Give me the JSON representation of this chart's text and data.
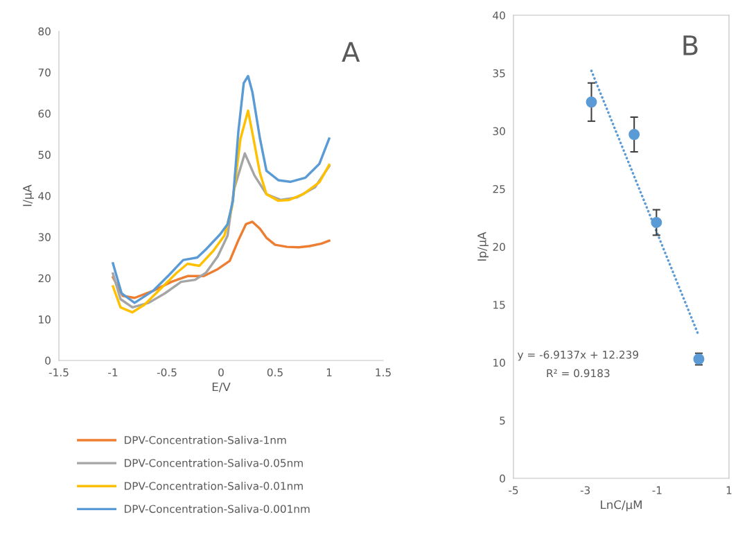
{
  "chart_data": [
    {
      "type": "line",
      "xlabel": "E/V",
      "ylabel": "I/µA",
      "xlim": [
        -1.5,
        1.5
      ],
      "xticks": [
        -1.5,
        -1,
        -0.5,
        0,
        0.5,
        1,
        1.5
      ],
      "ylim": [
        0,
        80
      ],
      "yticks": [
        0,
        10,
        20,
        30,
        40,
        50,
        60,
        70,
        80
      ],
      "grid": false,
      "legend": "bottom",
      "annotations": [
        "A"
      ],
      "series": [
        {
          "name": "DPV-Concentration-Saliva-1nm",
          "color": "#ed7d31",
          "x": [
            -1.0,
            -0.91,
            -0.8,
            -0.63,
            -0.46,
            -0.31,
            -0.16,
            -0.03,
            0.08,
            0.16,
            0.23,
            0.29,
            0.36,
            0.42,
            0.5,
            0.61,
            0.72,
            0.82,
            0.93,
            1.0
          ],
          "values": [
            20.2,
            15.7,
            15.2,
            16.9,
            19.1,
            20.5,
            20.5,
            22.2,
            24.2,
            29.2,
            33.1,
            33.7,
            32.0,
            29.8,
            28.1,
            27.6,
            27.5,
            27.8,
            28.4,
            29.1
          ]
        },
        {
          "name": "DPV-Concentration-Saliva-0.05nm",
          "color": "#a5a5a5",
          "x": [
            -1.0,
            -0.93,
            -0.82,
            -0.67,
            -0.52,
            -0.37,
            -0.24,
            -0.14,
            -0.03,
            0.06,
            0.12,
            0.22,
            0.31,
            0.42,
            0.55,
            0.7,
            0.87,
            1.0
          ],
          "values": [
            21.1,
            14.9,
            12.9,
            14.0,
            16.3,
            19.1,
            19.6,
            21.3,
            25.3,
            30.3,
            41.6,
            50.3,
            44.9,
            40.4,
            39.0,
            39.6,
            42.1,
            47.2
          ]
        },
        {
          "name": "DPV-Concentration-Saliva-0.01nm",
          "color": "#ffc000",
          "x": [
            -1.0,
            -0.93,
            -0.82,
            -0.71,
            -0.56,
            -0.41,
            -0.31,
            -0.2,
            -0.07,
            0.03,
            0.1,
            0.18,
            0.25,
            0.3,
            0.36,
            0.42,
            0.53,
            0.63,
            0.76,
            0.91,
            1.0
          ],
          "values": [
            18.0,
            12.9,
            11.7,
            13.5,
            17.4,
            21.3,
            23.5,
            23.0,
            26.7,
            30.3,
            37.1,
            53.9,
            60.7,
            53.9,
            45.5,
            40.4,
            38.8,
            39.0,
            40.4,
            43.3,
            47.5
          ]
        },
        {
          "name": "DPV-Concentration-Saliva-0.001nm",
          "color": "#5b9bd5",
          "x": [
            -1.0,
            -0.92,
            -0.8,
            -0.63,
            -0.48,
            -0.35,
            -0.22,
            -0.14,
            -0.01,
            0.06,
            0.11,
            0.16,
            0.21,
            0.25,
            0.29,
            0.36,
            0.42,
            0.53,
            0.64,
            0.78,
            0.91,
            1.0
          ],
          "values": [
            23.6,
            16.3,
            14.0,
            16.9,
            20.8,
            24.4,
            25.0,
            27.0,
            30.6,
            33.1,
            38.8,
            55.6,
            67.4,
            69.1,
            65.2,
            53.9,
            46.1,
            43.8,
            43.4,
            44.4,
            47.8,
            53.9
          ]
        }
      ]
    },
    {
      "type": "scatter",
      "xlabel": "LnC/µM",
      "ylabel": "Ip/µA",
      "xlim": [
        -5,
        1
      ],
      "xticks": [
        -5,
        -3,
        -1,
        1
      ],
      "ylim": [
        0,
        40
      ],
      "yticks": [
        0,
        5,
        10,
        15,
        20,
        25,
        30,
        35,
        40
      ],
      "grid": false,
      "legend": false,
      "annotations": [
        "B",
        "y = -6.9137x + 12.239",
        "R² = 0.9183"
      ],
      "series": [
        {
          "color": "#5b9bd5",
          "marker": "circle",
          "x": [
            -2.83,
            -1.64,
            -1.02,
            0.16
          ],
          "values": [
            32.5,
            29.7,
            22.1,
            10.3
          ],
          "errors": [
            1.65,
            1.5,
            1.1,
            0.5
          ]
        },
        {
          "type": "line",
          "line_style": "dotted",
          "color": "#5b9bd5",
          "x": [
            -2.83,
            0.16
          ],
          "values": [
            35.2,
            12.3
          ]
        }
      ]
    }
  ]
}
